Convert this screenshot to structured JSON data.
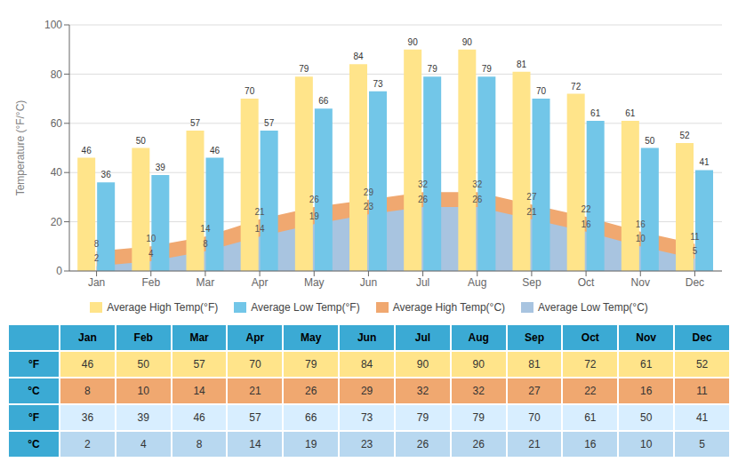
{
  "chart_data": {
    "type": "bar",
    "categories": [
      "Jan",
      "Feb",
      "Mar",
      "Apr",
      "May",
      "Jun",
      "Jul",
      "Aug",
      "Sep",
      "Oct",
      "Nov",
      "Dec"
    ],
    "ylabel": "Temperature (°F/°C)",
    "ylim": [
      0,
      100
    ],
    "yticks": [
      0,
      20,
      40,
      60,
      80,
      100
    ],
    "grid": true,
    "data_labels": true,
    "legend": "bottom",
    "series": [
      {
        "name": "Average High Temp(°F)",
        "type": "bar",
        "color": "#FFE48A",
        "values": [
          46,
          50,
          57,
          70,
          79,
          84,
          90,
          90,
          81,
          72,
          61,
          52
        ]
      },
      {
        "name": "Average Low Temp(°F)",
        "type": "bar",
        "color": "#72C6E8",
        "values": [
          36,
          39,
          46,
          57,
          66,
          73,
          79,
          79,
          70,
          61,
          50,
          41
        ]
      },
      {
        "name": "Average High Temp(°C)",
        "type": "area",
        "color": "#F0A870",
        "values": [
          8,
          10,
          14,
          21,
          26,
          29,
          32,
          32,
          27,
          22,
          16,
          11
        ]
      },
      {
        "name": "Average Low Temp(°C)",
        "type": "area",
        "color": "#A8C4E0",
        "values": [
          2,
          4,
          8,
          14,
          19,
          23,
          26,
          26,
          21,
          16,
          10,
          5
        ]
      }
    ],
    "table": {
      "color": "#3BAAD4",
      "row_labels": [
        "°F",
        "°C",
        "°F",
        "°C"
      ],
      "rows": [
        "Average High Temp(°F)",
        "Average High Temp(°C)",
        "Average Low Temp(°F)",
        "Average Low Temp(°C)"
      ],
      "colors": [
        "#FFE48A",
        "#F0A870",
        "#D8EEFF",
        "#B8D8F0"
      ]
    }
  }
}
